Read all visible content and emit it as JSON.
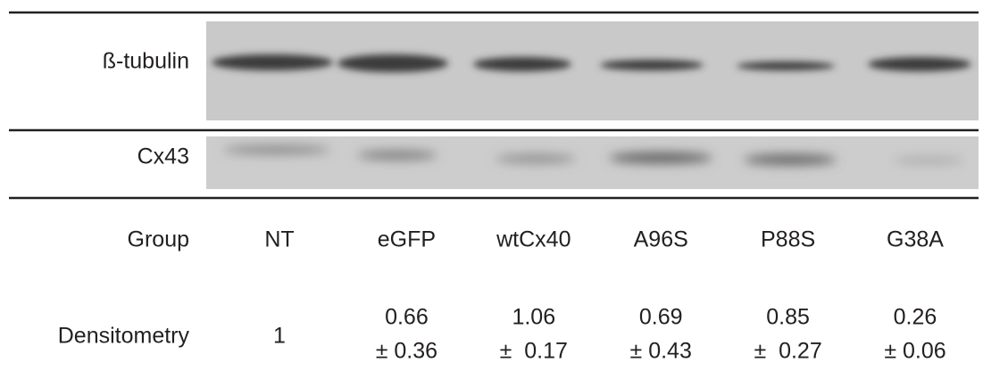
{
  "blots": [
    {
      "label": "ß-tubulin"
    },
    {
      "label": "Cx43"
    }
  ],
  "table": {
    "row_labels": [
      "Group",
      "Densitometry"
    ],
    "columns": [
      {
        "group": "NT",
        "densitometry": [
          "1"
        ]
      },
      {
        "group": "eGFP",
        "densitometry": [
          "0.66",
          "± 0.36"
        ]
      },
      {
        "group": "wtCx40",
        "densitometry": [
          "1.06",
          "±  0.17"
        ]
      },
      {
        "group": "A96S",
        "densitometry": [
          "0.69",
          "± 0.43"
        ]
      },
      {
        "group": "P88S",
        "densitometry": [
          "0.85",
          "±  0.27"
        ]
      },
      {
        "group": "G38A",
        "densitometry": [
          "0.26",
          "± 0.06"
        ]
      }
    ]
  }
}
